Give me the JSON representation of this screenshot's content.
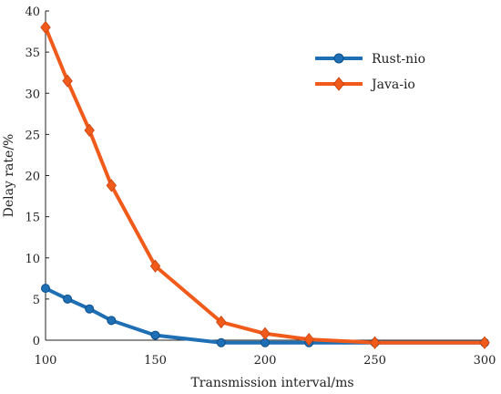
{
  "chart_data": {
    "type": "line",
    "xlabel": "Transmission interval/ms",
    "ylabel": "Delay rate/%",
    "xlim": [
      100,
      300
    ],
    "ylim": [
      0,
      40
    ],
    "xticks": [
      100,
      150,
      200,
      250,
      300
    ],
    "yticks": [
      0,
      5,
      10,
      15,
      20,
      25,
      30,
      35,
      40
    ],
    "legend_position": "top-right",
    "grid": false,
    "series": [
      {
        "name": "Rust-nio",
        "color": "#1f6fb5",
        "marker": "circle",
        "x": [
          100,
          110,
          120,
          130,
          150,
          180,
          200,
          220,
          250,
          300
        ],
        "y": [
          6.3,
          5.0,
          3.8,
          2.4,
          0.6,
          -0.3,
          -0.3,
          -0.3,
          -0.3,
          -0.3
        ]
      },
      {
        "name": "Java-io",
        "color": "#f05a1a",
        "marker": "diamond",
        "x": [
          100,
          110,
          120,
          130,
          150,
          180,
          200,
          220,
          250,
          300
        ],
        "y": [
          38.0,
          31.5,
          25.5,
          18.8,
          9.0,
          2.2,
          0.8,
          0.1,
          -0.3,
          -0.3
        ]
      }
    ]
  }
}
